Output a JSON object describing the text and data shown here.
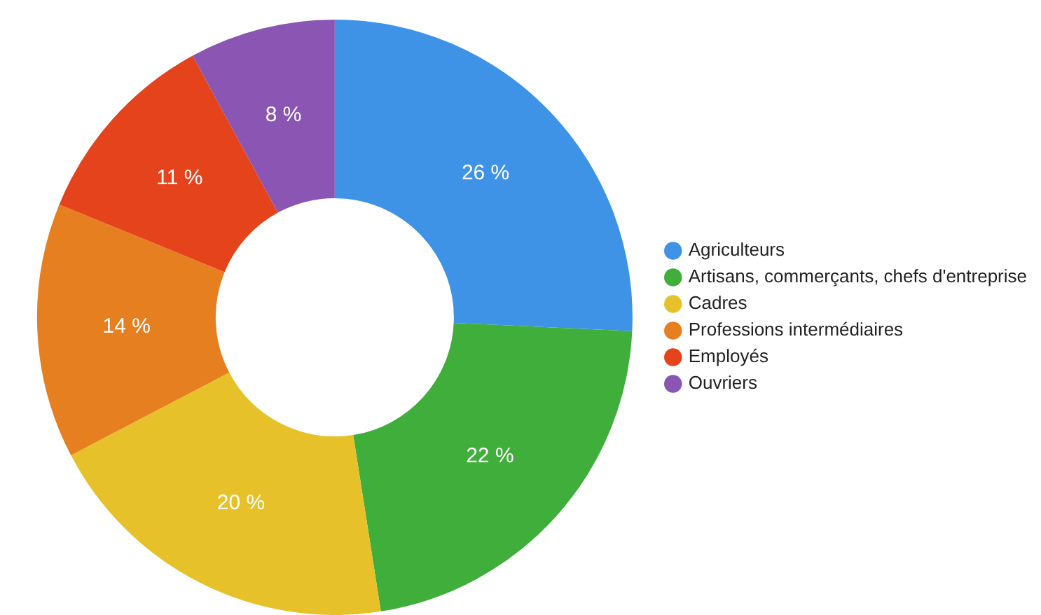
{
  "chart_data": {
    "type": "donut",
    "categories": [
      "Agriculteurs",
      "Artisans, commerçants, chefs d'entreprise",
      "Cadres",
      "Professions intermédiaires",
      "Employés",
      "Ouvriers"
    ],
    "values": [
      26,
      22,
      20,
      14,
      11,
      8
    ],
    "value_labels": [
      "26 %",
      "22 %",
      "20 %",
      "14 %",
      "11 %",
      "8 %"
    ],
    "colors": [
      "#3f93e6",
      "#3fae3a",
      "#e6c12a",
      "#e67f1f",
      "#e5431c",
      "#8b55b3"
    ],
    "legend": "right"
  }
}
